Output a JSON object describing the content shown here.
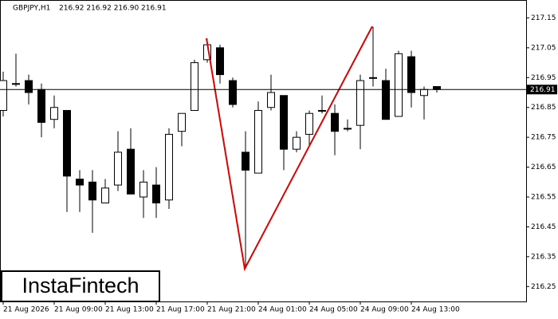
{
  "chart_data": {
    "type": "candlestick",
    "title": "GBPJPY,H1",
    "quote": "216.92 216.92 216.90 216.91",
    "watermark": "InstaFintech",
    "categories": [
      "21 Aug 2026",
      null,
      null,
      null,
      "21 Aug 09:00",
      null,
      null,
      null,
      "21 Aug 13:00",
      null,
      null,
      null,
      "21 Aug 17:00",
      null,
      null,
      null,
      "21 Aug 21:00",
      null,
      null,
      null,
      "24 Aug 01:00",
      null,
      null,
      null,
      "24 Aug 05:00",
      null,
      null,
      null,
      "24 Aug 09:00",
      null,
      null,
      null,
      "24 Aug 13:00",
      null,
      null
    ],
    "open": [
      216.84,
      216.93,
      216.94,
      216.91,
      216.81,
      216.84,
      216.61,
      216.6,
      216.53,
      216.59,
      216.71,
      216.55,
      216.59,
      216.54,
      216.77,
      216.84,
      217.01,
      217.05,
      216.94,
      216.7,
      216.63,
      216.85,
      216.89,
      216.71,
      216.76,
      216.84,
      216.83,
      216.78,
      216.79,
      216.95,
      216.94,
      216.82,
      217.02,
      216.89,
      216.92
    ],
    "high": [
      216.97,
      217.03,
      216.96,
      216.93,
      216.89,
      216.84,
      216.64,
      216.64,
      216.61,
      216.77,
      216.78,
      216.64,
      216.65,
      216.78,
      216.83,
      217.01,
      217.08,
      217.06,
      216.95,
      216.77,
      216.87,
      216.96,
      216.89,
      216.77,
      216.84,
      216.89,
      216.86,
      216.81,
      216.96,
      217.12,
      216.98,
      217.04,
      217.04,
      216.92,
      216.92
    ],
    "low": [
      216.82,
      216.92,
      216.86,
      216.75,
      216.78,
      216.5,
      216.5,
      216.43,
      216.53,
      216.57,
      216.56,
      216.48,
      216.48,
      216.51,
      216.72,
      216.84,
      217.0,
      216.93,
      216.85,
      216.31,
      216.63,
      216.84,
      216.64,
      216.7,
      216.72,
      216.83,
      216.69,
      216.77,
      216.71,
      216.92,
      216.81,
      216.82,
      216.85,
      216.81,
      216.9
    ],
    "close": [
      216.94,
      216.93,
      216.9,
      216.8,
      216.85,
      216.62,
      216.59,
      216.54,
      216.58,
      216.7,
      216.56,
      216.6,
      216.53,
      216.76,
      216.83,
      217.0,
      217.06,
      216.96,
      216.86,
      216.64,
      216.84,
      216.9,
      216.71,
      216.75,
      216.83,
      216.84,
      216.77,
      216.78,
      216.94,
      216.95,
      216.81,
      217.03,
      216.9,
      216.91,
      216.91
    ],
    "up_color": "#ffffff",
    "down_color": "#000000",
    "current_price": 216.91,
    "ylim": [
      216.2,
      217.21
    ],
    "yticks": [
      217.15,
      217.05,
      216.95,
      216.85,
      216.75,
      216.65,
      216.55,
      216.45,
      216.35,
      216.25
    ],
    "grid": false
  }
}
